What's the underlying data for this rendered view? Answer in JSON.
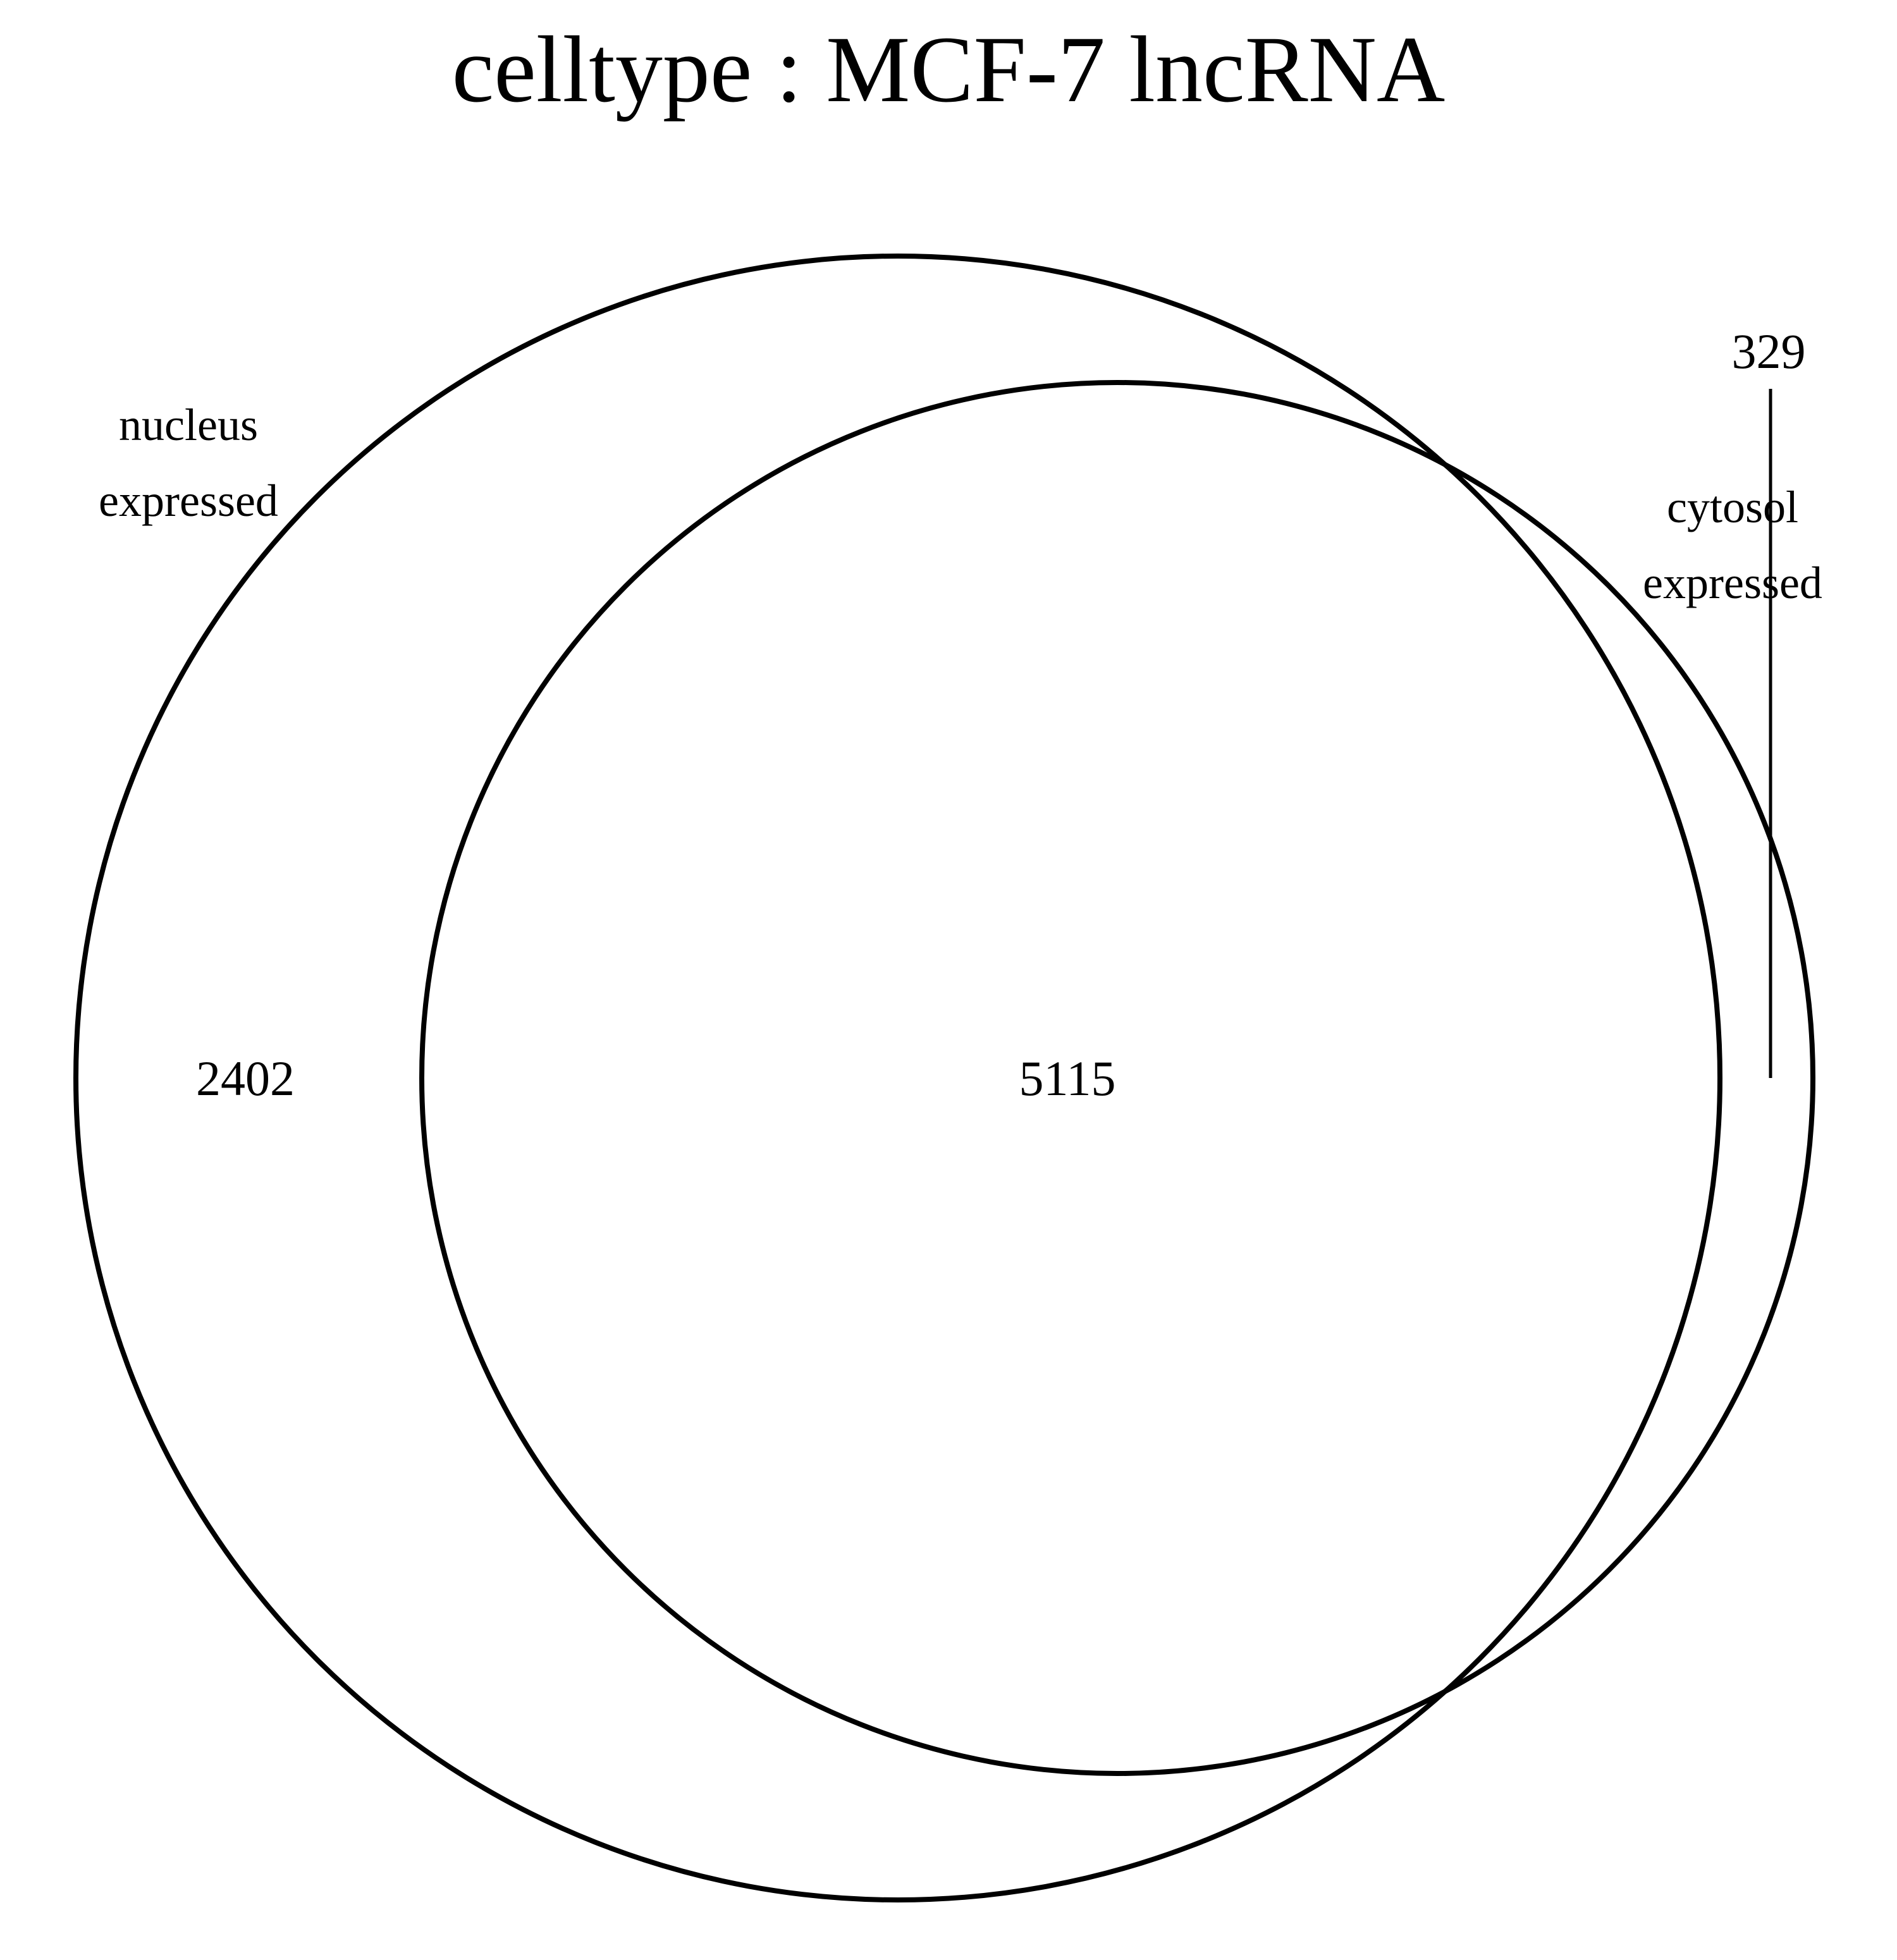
{
  "title": "celltype :  MCF-7  lncRNA",
  "sets": [
    {
      "name_line1": "nucleus",
      "name_line2": "expressed"
    },
    {
      "name_line1": "cytosol",
      "name_line2": "expressed"
    }
  ],
  "regions": {
    "nucleus_only": "2402",
    "both": "5115",
    "cytosol_only": "329"
  },
  "colors": {
    "stroke": "#000000",
    "background": "#ffffff"
  }
}
